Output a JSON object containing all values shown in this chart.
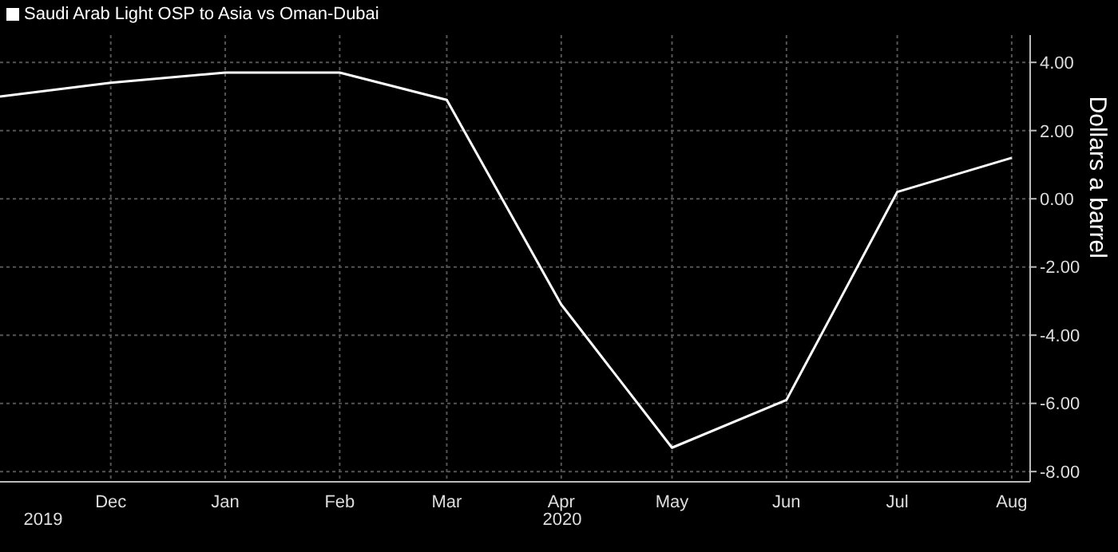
{
  "chart_data": {
    "type": "line",
    "ylabel": "Dollars a barrel",
    "x": [
      "2019-11",
      "2019-12",
      "2020-01",
      "2020-02",
      "2020-03",
      "2020-04",
      "2020-05",
      "2020-06",
      "2020-07",
      "2020-08"
    ],
    "series": [
      {
        "name": "Saudi Arab Light OSP to Asia vs Oman-Dubai",
        "color": "#ffffff",
        "values": [
          3.0,
          3.4,
          3.7,
          3.7,
          2.9,
          -3.1,
          -7.3,
          -5.9,
          0.2,
          1.2
        ]
      }
    ],
    "xlim": [
      "2019-11-01",
      "2020-08-06"
    ],
    "xticks": [
      {
        "value": "2019-12",
        "label": "Dec"
      },
      {
        "value": "2020-01",
        "label": "Jan"
      },
      {
        "value": "2020-02",
        "label": "Feb"
      },
      {
        "value": "2020-03",
        "label": "Mar"
      },
      {
        "value": "2020-04",
        "label": "Apr"
      },
      {
        "value": "2020-05",
        "label": "May"
      },
      {
        "value": "2020-06",
        "label": "Jun"
      },
      {
        "value": "2020-07",
        "label": "Jul"
      },
      {
        "value": "2020-08",
        "label": "Aug"
      }
    ],
    "ylim": [
      -8.3,
      4.8
    ],
    "yticks": [
      {
        "value": 4,
        "label": "4.00"
      },
      {
        "value": 2,
        "label": "2.00"
      },
      {
        "value": 0,
        "label": "0.00"
      },
      {
        "value": -2,
        "label": "-2.00"
      },
      {
        "value": -4,
        "label": "-4.00"
      },
      {
        "value": -6,
        "label": "-6.00"
      },
      {
        "value": -8,
        "label": "-8.00"
      }
    ],
    "annotations": [
      "2019",
      "2020"
    ],
    "grid": true,
    "legend": "top left",
    "marker": "none",
    "line_style": "solid"
  }
}
